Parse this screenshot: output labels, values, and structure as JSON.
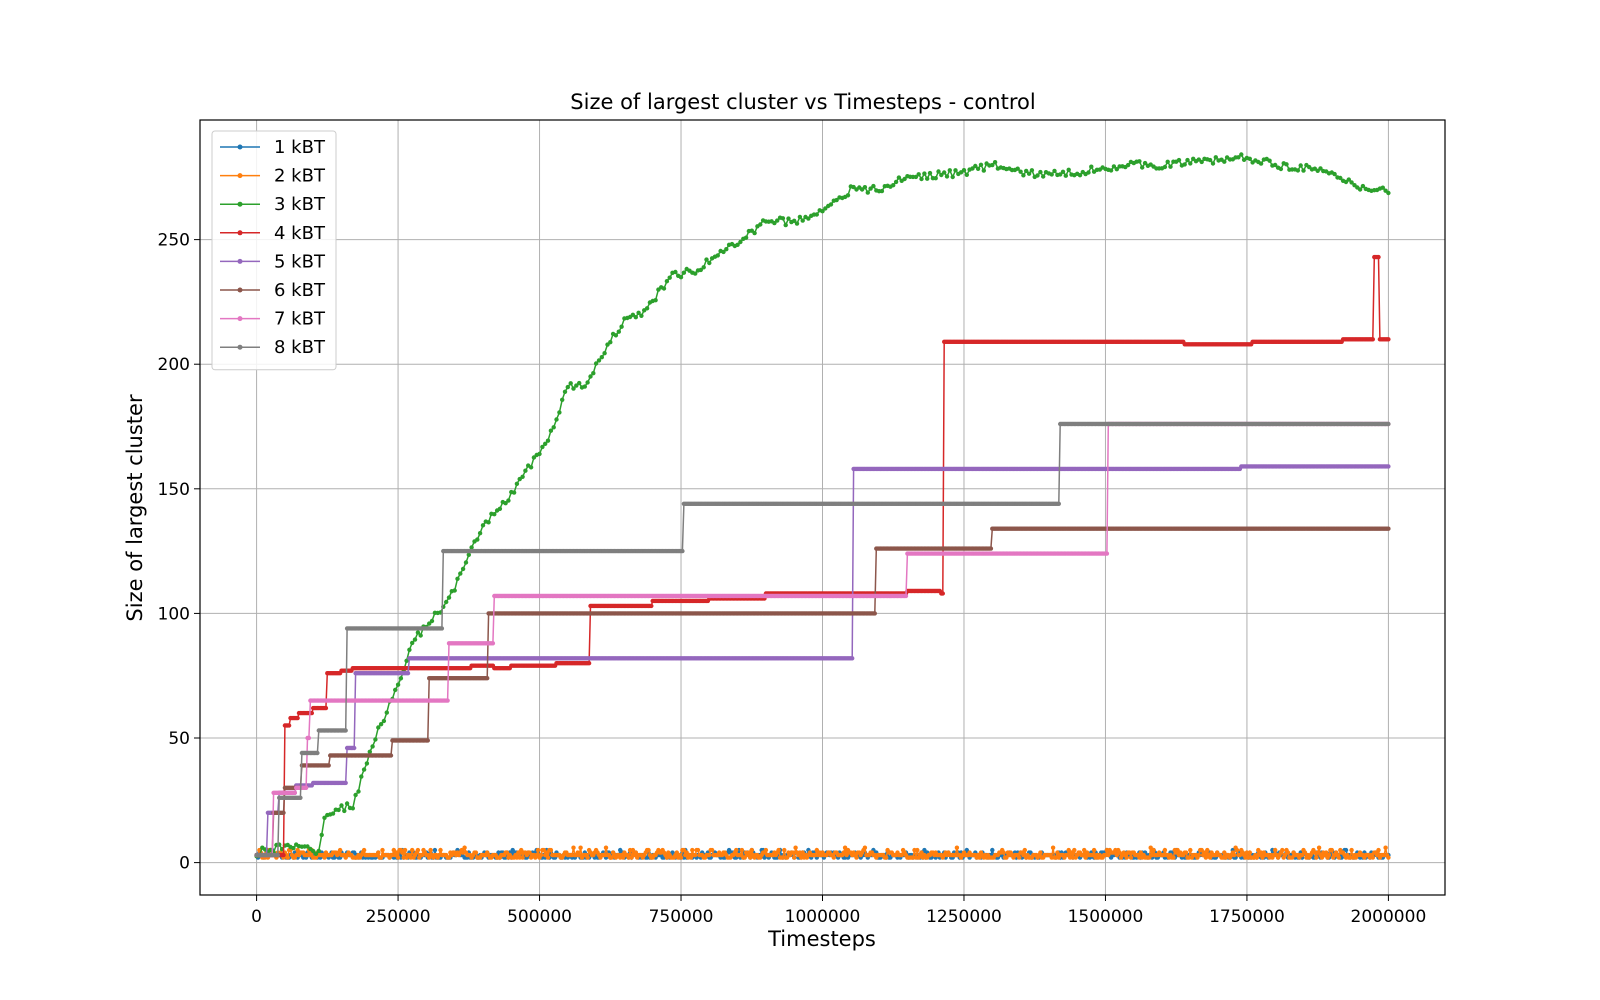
{
  "chart_data": {
    "type": "line",
    "title": "Size of largest cluster vs Timesteps - control",
    "xlabel": "Timesteps",
    "ylabel": "Size of largest cluster",
    "xlim": [
      -100000,
      2100000
    ],
    "ylim": [
      -13,
      298
    ],
    "xticks": [
      0,
      250000,
      500000,
      750000,
      1000000,
      1250000,
      1500000,
      1750000,
      2000000
    ],
    "yticks": [
      0,
      50,
      100,
      150,
      200,
      250
    ],
    "grid": true,
    "legend_position": "top-left",
    "marker": "dot",
    "series": [
      {
        "name": "1 kBT",
        "color": "#1f77b4",
        "steps": [
          [
            0,
            3
          ],
          [
            2000000,
            3
          ]
        ],
        "noise": {
          "low": 2,
          "high": 5
        }
      },
      {
        "name": "2 kBT",
        "color": "#ff7f0e",
        "steps": [
          [
            0,
            3
          ],
          [
            2000000,
            3
          ]
        ],
        "noise": {
          "low": 2,
          "high": 6
        }
      },
      {
        "name": "3 kBT",
        "color": "#2ca02c",
        "points": [
          [
            0,
            3
          ],
          [
            40000,
            6
          ],
          [
            80000,
            5
          ],
          [
            110000,
            5
          ],
          [
            120000,
            18
          ],
          [
            140000,
            21
          ],
          [
            170000,
            23
          ],
          [
            180000,
            30
          ],
          [
            210000,
            50
          ],
          [
            250000,
            72
          ],
          [
            280000,
            90
          ],
          [
            320000,
            100
          ],
          [
            350000,
            110
          ],
          [
            380000,
            125
          ],
          [
            400000,
            135
          ],
          [
            420000,
            140
          ],
          [
            450000,
            148
          ],
          [
            480000,
            158
          ],
          [
            520000,
            172
          ],
          [
            550000,
            191
          ],
          [
            580000,
            191
          ],
          [
            620000,
            208
          ],
          [
            650000,
            217
          ],
          [
            690000,
            222
          ],
          [
            730000,
            235
          ],
          [
            780000,
            238
          ],
          [
            820000,
            245
          ],
          [
            860000,
            250
          ],
          [
            900000,
            258
          ],
          [
            950000,
            257
          ],
          [
            1000000,
            262
          ],
          [
            1050000,
            270
          ],
          [
            1100000,
            270
          ],
          [
            1150000,
            275
          ],
          [
            1200000,
            276
          ],
          [
            1250000,
            277
          ],
          [
            1300000,
            280
          ],
          [
            1350000,
            277
          ],
          [
            1400000,
            276
          ],
          [
            1450000,
            277
          ],
          [
            1500000,
            279
          ],
          [
            1550000,
            280
          ],
          [
            1600000,
            280
          ],
          [
            1650000,
            281
          ],
          [
            1700000,
            282
          ],
          [
            1750000,
            283
          ],
          [
            1800000,
            280
          ],
          [
            1850000,
            279
          ],
          [
            1900000,
            276
          ],
          [
            1950000,
            271
          ],
          [
            2000000,
            270
          ]
        ]
      },
      {
        "name": "4 kBT",
        "color": "#d62728",
        "steps": [
          [
            0,
            3
          ],
          [
            45000,
            3
          ],
          [
            50000,
            55
          ],
          [
            60000,
            58
          ],
          [
            75000,
            60
          ],
          [
            100000,
            62
          ],
          [
            125000,
            76
          ],
          [
            150000,
            77
          ],
          [
            170000,
            78
          ],
          [
            380000,
            79
          ],
          [
            420000,
            78
          ],
          [
            450000,
            79
          ],
          [
            530000,
            80
          ],
          [
            590000,
            103
          ],
          [
            700000,
            105
          ],
          [
            800000,
            106
          ],
          [
            900000,
            108
          ],
          [
            1150000,
            109
          ],
          [
            1210000,
            108
          ],
          [
            1215000,
            209
          ],
          [
            1640000,
            208
          ],
          [
            1760000,
            209
          ],
          [
            1920000,
            210
          ],
          [
            1970000,
            210
          ],
          [
            1975000,
            243
          ],
          [
            1985000,
            210
          ],
          [
            2000000,
            210
          ]
        ]
      },
      {
        "name": "5 kBT",
        "color": "#9467bd",
        "steps": [
          [
            0,
            3
          ],
          [
            20000,
            20
          ],
          [
            40000,
            28
          ],
          [
            70000,
            31
          ],
          [
            100000,
            32
          ],
          [
            160000,
            46
          ],
          [
            175000,
            76
          ],
          [
            270000,
            82
          ],
          [
            1050000,
            82
          ],
          [
            1055000,
            158
          ],
          [
            1740000,
            159
          ],
          [
            2000000,
            159
          ]
        ]
      },
      {
        "name": "6 kBT",
        "color": "#8c564b",
        "steps": [
          [
            0,
            3
          ],
          [
            30000,
            20
          ],
          [
            50000,
            30
          ],
          [
            80000,
            39
          ],
          [
            130000,
            43
          ],
          [
            240000,
            49
          ],
          [
            305000,
            74
          ],
          [
            410000,
            100
          ],
          [
            1095000,
            126
          ],
          [
            1300000,
            134
          ],
          [
            2000000,
            134
          ]
        ]
      },
      {
        "name": "7 kBT",
        "color": "#e377c2",
        "steps": [
          [
            0,
            3
          ],
          [
            30000,
            28
          ],
          [
            70000,
            30
          ],
          [
            90000,
            50
          ],
          [
            95000,
            65
          ],
          [
            340000,
            88
          ],
          [
            420000,
            107
          ],
          [
            1150000,
            124
          ],
          [
            1505000,
            176
          ],
          [
            2000000,
            176
          ]
        ]
      },
      {
        "name": "8 kBT",
        "color": "#7f7f7f",
        "steps": [
          [
            0,
            3
          ],
          [
            40000,
            26
          ],
          [
            80000,
            44
          ],
          [
            110000,
            53
          ],
          [
            160000,
            94
          ],
          [
            330000,
            125
          ],
          [
            755000,
            144
          ],
          [
            1420000,
            176
          ],
          [
            2000000,
            176
          ]
        ]
      }
    ]
  }
}
